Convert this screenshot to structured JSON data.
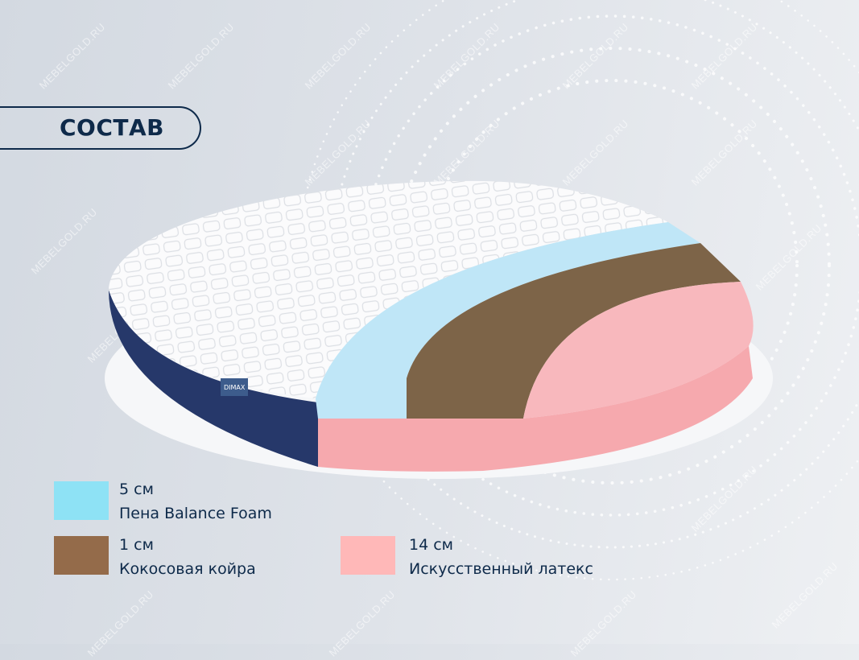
{
  "title": "СОСТАВ",
  "watermark": "MEBELGOLD.RU",
  "brand_label": "DIMAX",
  "legend": [
    {
      "thickness": "5 см",
      "material": "Пена Balance Foam",
      "color": "#8ee2f5"
    },
    {
      "thickness": "1 см",
      "material": "Кокосовая койра",
      "color": "#946b4a"
    },
    {
      "thickness": "14 см",
      "material": "Искусственный латекс",
      "color": "#ffb8b8"
    }
  ],
  "colors": {
    "navy": "#0e2a4a",
    "side_fabric": "#26386a",
    "foam": "#bfe6f7",
    "coir": "#7d6448",
    "latex": "#f8b8bd"
  }
}
